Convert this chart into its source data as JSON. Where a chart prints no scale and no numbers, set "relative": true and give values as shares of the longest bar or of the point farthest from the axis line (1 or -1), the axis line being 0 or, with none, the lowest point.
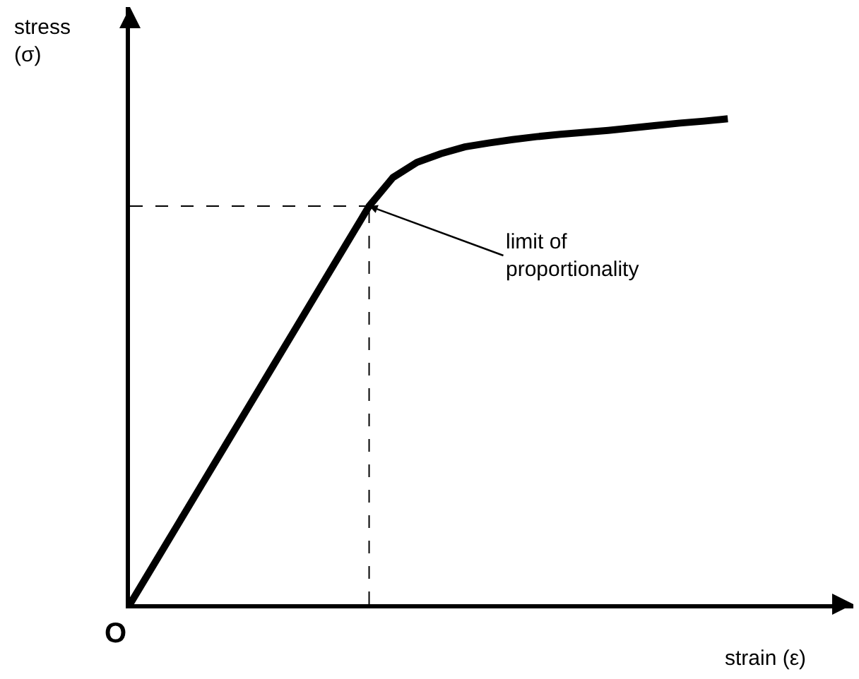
{
  "chart_data": {
    "type": "line",
    "relative": true,
    "xlabel": "strain (ε)",
    "ylabel": "stress\n(σ)",
    "categories": [
      null,
      null,
      null,
      null,
      null,
      null,
      null,
      null,
      null,
      null,
      null,
      null,
      null,
      null,
      null,
      null,
      null,
      null,
      null,
      null,
      null,
      null,
      null,
      null,
      null,
      null
    ],
    "series": [
      {
        "color": "#000000",
        "values": [
          0,
          0.082,
          0.164,
          0.246,
          0.328,
          0.41,
          0.492,
          0.574,
          0.656,
          0.738,
          0.82,
          0.879,
          0.91,
          0.928,
          0.942,
          0.95,
          0.957,
          0.963,
          0.968,
          0.972,
          0.976,
          0.981,
          0.986,
          0.991,
          0.995,
          1
        ]
      }
    ],
    "ref_lines": [
      {
        "axis": "y",
        "value": 0.82,
        "color": "#000000",
        "line_style": "dashed"
      }
    ],
    "annotations": [
      "limit of\nproportionality",
      "O"
    ],
    "marker": "none",
    "line_style": "solid"
  }
}
